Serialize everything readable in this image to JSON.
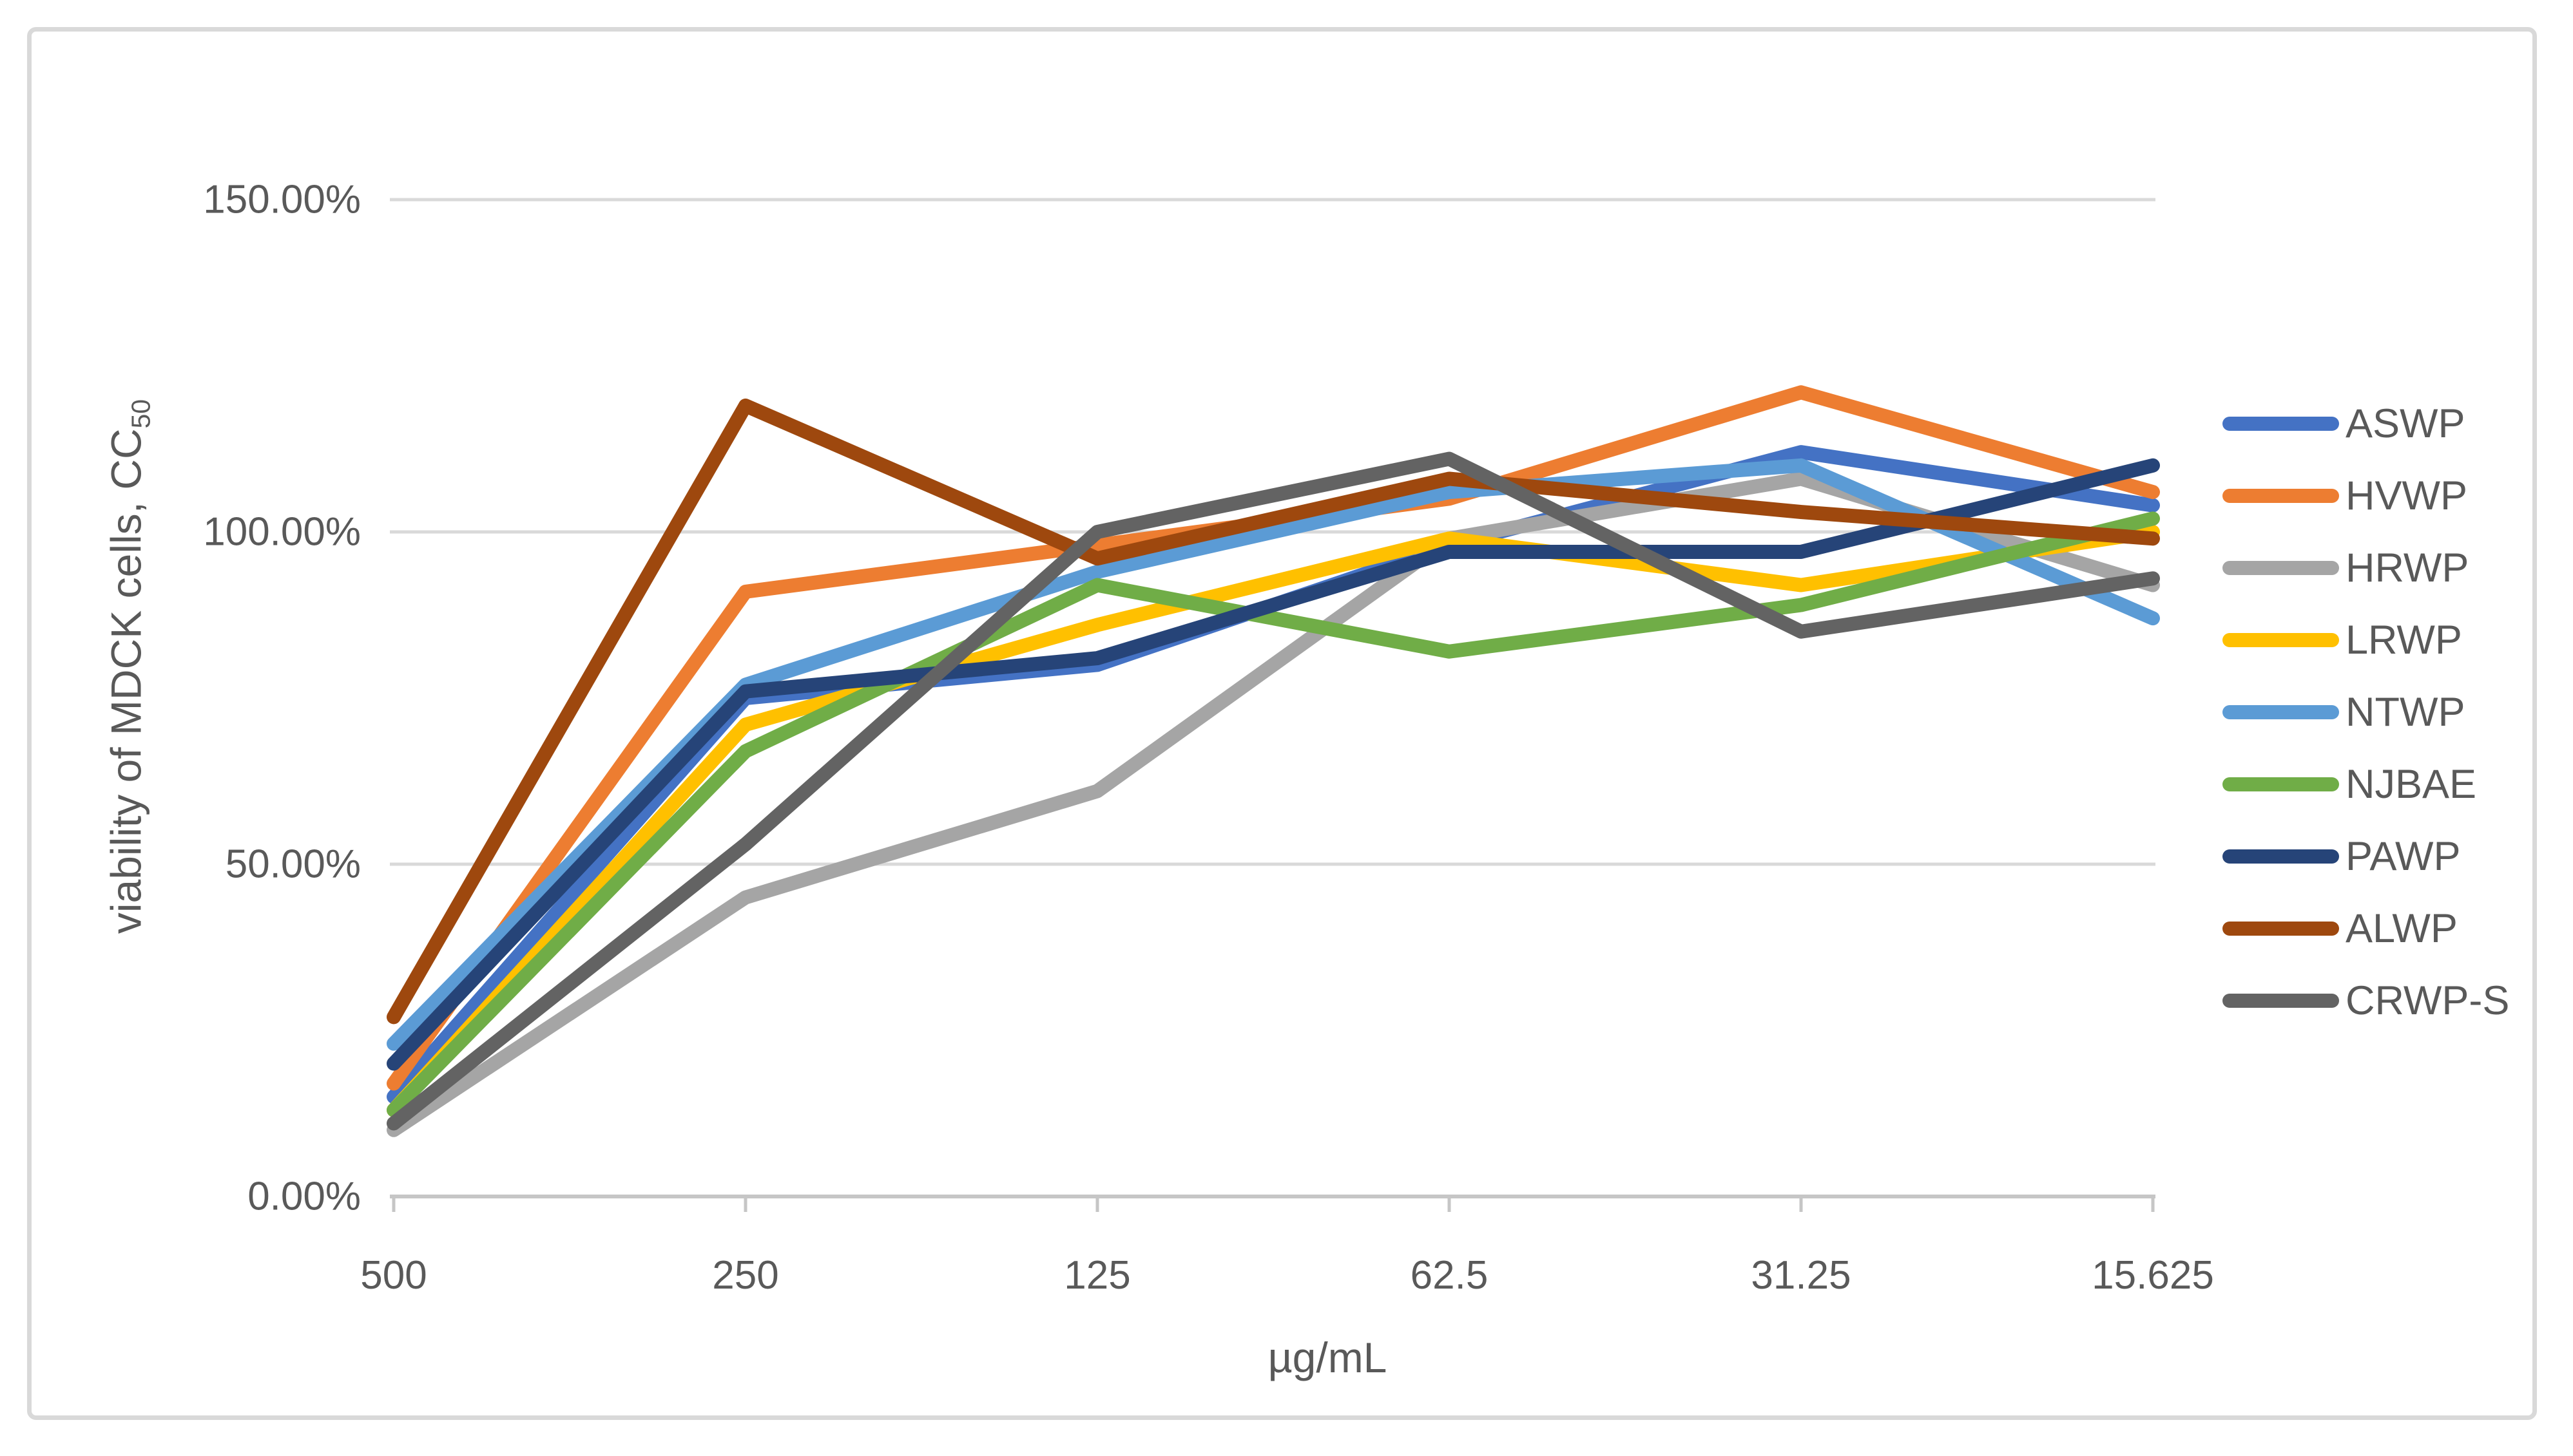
{
  "chart_data": {
    "type": "line",
    "title": "",
    "xlabel": "µg/mL",
    "ylabel_main": "viability of MDCK cells, CC",
    "ylabel_sub": "50",
    "categories": [
      "500",
      "250",
      "125",
      "62.5",
      "31.25",
      "15.625"
    ],
    "unit": "percent",
    "ylim": [
      0,
      150
    ],
    "grid": "horizontal",
    "legend_position": "right",
    "y_ticks": [
      {
        "label": "150.00%",
        "value": 150
      },
      {
        "label": "100.00%",
        "value": 100
      },
      {
        "label": "50.00%",
        "value": 50
      },
      {
        "label": "0.00%",
        "value": 0
      }
    ],
    "series": [
      {
        "name": "ASWP",
        "color": "#4472C4",
        "values": [
          15,
          75,
          80,
          98,
          112,
          104
        ]
      },
      {
        "name": "HVWP",
        "color": "#ED7D31",
        "values": [
          17,
          91,
          98,
          105,
          121,
          106
        ]
      },
      {
        "name": "HRWP",
        "color": "#A5A5A5",
        "values": [
          10,
          45,
          61,
          99,
          108,
          92
        ]
      },
      {
        "name": "LRWP",
        "color": "#FFC000",
        "values": [
          13,
          71,
          86,
          99,
          92,
          100
        ]
      },
      {
        "name": "NTWP",
        "color": "#5B9BD5",
        "values": [
          23,
          77,
          94,
          106,
          110,
          87
        ]
      },
      {
        "name": "NJBAE",
        "color": "#70AD47",
        "values": [
          13,
          67,
          92,
          82,
          89,
          102
        ]
      },
      {
        "name": "PAWP",
        "color": "#264478",
        "values": [
          20,
          76,
          81,
          97,
          97,
          110
        ]
      },
      {
        "name": "ALWP",
        "color": "#9E480E",
        "values": [
          27,
          119,
          96,
          108,
          103,
          99
        ]
      },
      {
        "name": "CRWP-S",
        "color": "#636363",
        "values": [
          11,
          53,
          100,
          111,
          85,
          93
        ]
      }
    ]
  },
  "colors": {
    "text": "#595959",
    "gridline": "#D9D9D9",
    "axis": "#C6C6C6",
    "border": "#D9D9D9",
    "background": "#FFFFFF"
  }
}
